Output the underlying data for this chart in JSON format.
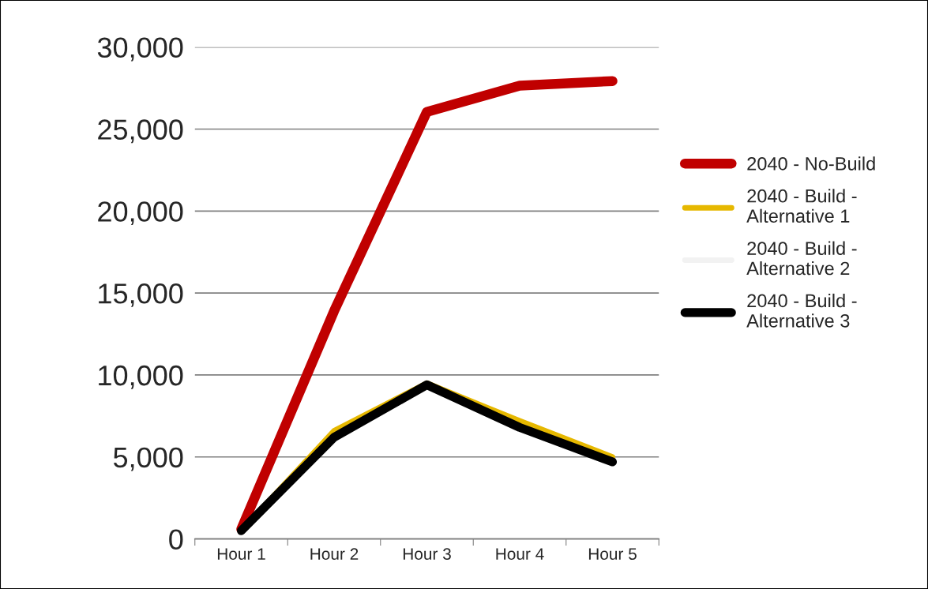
{
  "chart_data": {
    "type": "line",
    "categories": [
      "Hour 1",
      "Hour 2",
      "Hour 3",
      "Hour 4",
      "Hour 5"
    ],
    "series": [
      {
        "name": "2040 - No-Build",
        "color": "#c00000",
        "values": [
          600,
          13900,
          26050,
          27650,
          27930
        ]
      },
      {
        "name": "2040 - Build - Alternative 1",
        "color": "#e6b800",
        "values": [
          500,
          6600,
          9500,
          7200,
          5000
        ]
      },
      {
        "name": "2040 - Build - Alternative 2",
        "color": "#f2f2f2",
        "values": [
          null,
          null,
          null,
          null,
          null
        ]
      },
      {
        "name": "2040 - Build - Alternative 3",
        "color": "#000000",
        "values": [
          500,
          6200,
          9400,
          6800,
          4700
        ]
      }
    ],
    "ylim": [
      0,
      30000
    ],
    "yticks": [
      {
        "value": 0,
        "label": "0"
      },
      {
        "value": 5000,
        "label": "5,000"
      },
      {
        "value": 10000,
        "label": "10,000"
      },
      {
        "value": 15000,
        "label": "15,000"
      },
      {
        "value": 20000,
        "label": "20,000"
      },
      {
        "value": 25000,
        "label": "25,000"
      },
      {
        "value": 30000,
        "label": "30,000"
      }
    ],
    "grid": "y",
    "legend": "right",
    "marker": "none",
    "line_style": "solid"
  }
}
